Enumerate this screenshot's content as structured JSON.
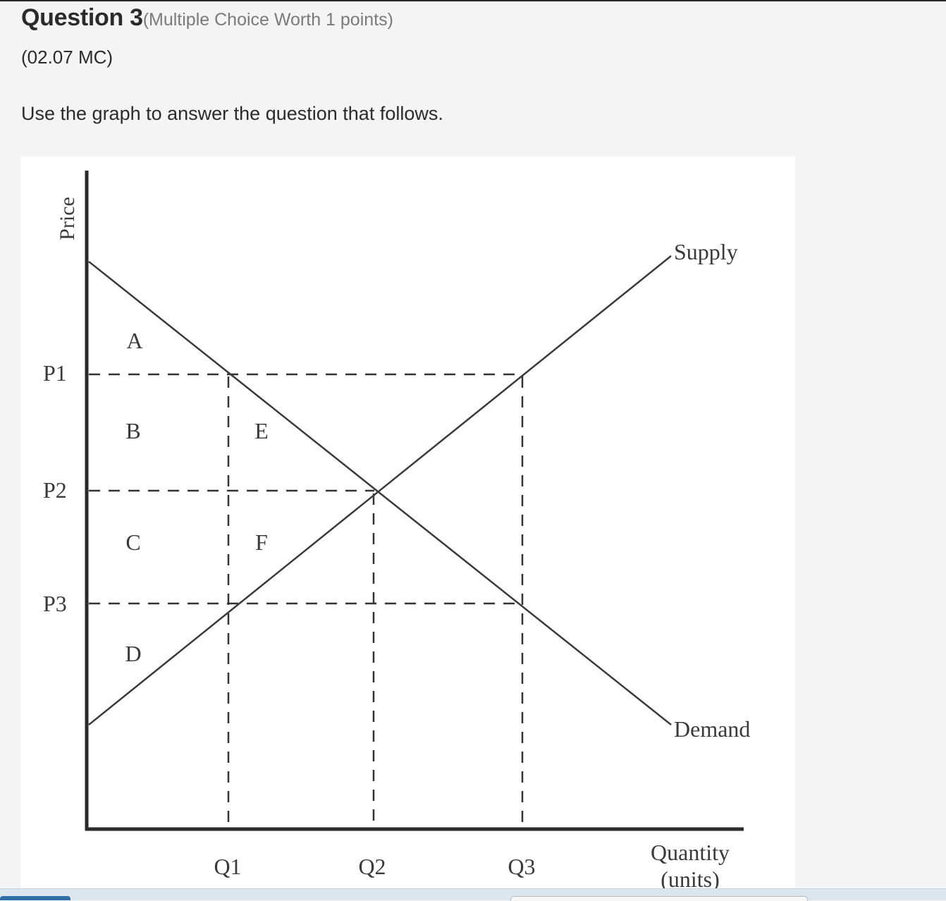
{
  "question": {
    "title": "Question 3",
    "meta": "(Multiple Choice Worth 1 points)",
    "code": "(02.07 MC)",
    "instruction": "Use the graph to answer the question that follows."
  },
  "graph": {
    "y_axis_label": "Price",
    "x_axis_label_line1": "Quantity",
    "x_axis_label_line2": "(units)",
    "price_labels": [
      "P1",
      "P2",
      "P3"
    ],
    "quantity_labels": [
      "Q1",
      "Q2",
      "Q3"
    ],
    "region_labels": [
      "A",
      "B",
      "C",
      "D",
      "E",
      "F"
    ],
    "curve_labels": {
      "supply": "Supply",
      "demand": "Demand"
    }
  }
}
